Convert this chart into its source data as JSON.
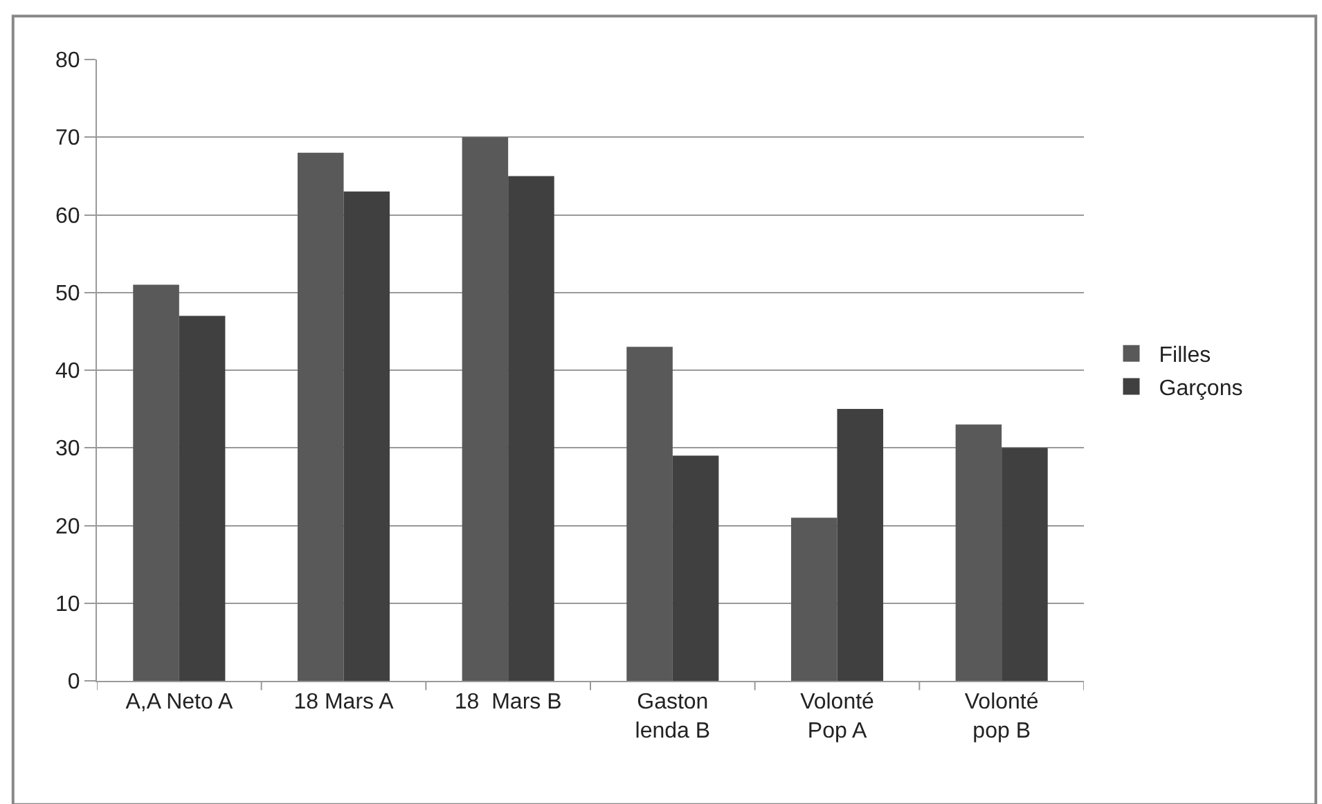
{
  "chart_data": {
    "type": "bar",
    "categories": [
      "A,A Neto A",
      "18 Mars A",
      "18  Mars B",
      "Gaston lenda B",
      "Volonté Pop A",
      "Volonté pop B"
    ],
    "series": [
      {
        "name": "Filles",
        "color": "#595959",
        "values": [
          51,
          68,
          70,
          43,
          21,
          33
        ]
      },
      {
        "name": "Garçons",
        "color": "#404040",
        "values": [
          47,
          63,
          65,
          29,
          35,
          30
        ]
      }
    ],
    "ylim": [
      0,
      80
    ],
    "yticks": [
      0,
      10,
      20,
      30,
      40,
      50,
      60,
      70,
      80
    ],
    "grid": "y",
    "legend": "right"
  }
}
